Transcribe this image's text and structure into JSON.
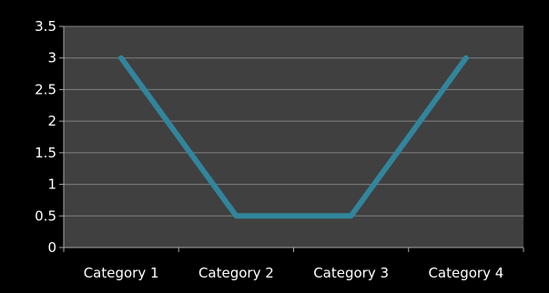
{
  "chart_data": {
    "type": "line",
    "categories": [
      "Category 1",
      "Category 2",
      "Category 3",
      "Category 4"
    ],
    "series": [
      {
        "values": [
          3,
          0.5,
          0.5,
          3
        ],
        "color": "#31859c"
      }
    ],
    "y_ticks": [
      "0",
      "0.5",
      "1",
      "1.5",
      "2",
      "2.5",
      "3",
      "3.5"
    ],
    "ylim": [
      0,
      3.5
    ],
    "grid": true,
    "legend": "none",
    "title": "",
    "xlabel": "",
    "ylabel": ""
  },
  "colors": {
    "page_background": "#000000",
    "plot_background": "#404040",
    "gridline": "#7f7f7f",
    "axis": "#a6a6a6",
    "text": "#ffffff"
  }
}
